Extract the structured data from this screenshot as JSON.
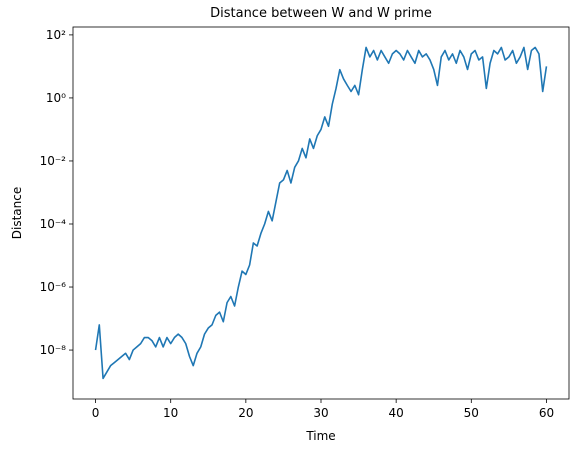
{
  "chart_data": {
    "type": "line",
    "title": "Distance between W and W prime",
    "x_label": "Time",
    "y_label": "Distance",
    "log_y": true,
    "grid": false,
    "xlim": [
      -3,
      63
    ],
    "xticks": [
      0,
      10,
      20,
      30,
      40,
      50,
      60
    ],
    "ylim": [
      2.8e-10,
      178
    ],
    "yticks": [
      {
        "value": 1e-08,
        "label": "10⁻⁸"
      },
      {
        "value": 1e-06,
        "label": "10⁻⁶"
      },
      {
        "value": 0.0001,
        "label": "10⁻⁴"
      },
      {
        "value": 0.01,
        "label": "10⁻²"
      },
      {
        "value": 1,
        "label": "10⁰"
      },
      {
        "value": 100,
        "label": "10²"
      }
    ],
    "series": [
      {
        "color": "#1f77b4",
        "x": [
          0,
          0.5,
          1,
          1.5,
          2,
          2.5,
          3,
          3.5,
          4,
          4.5,
          5,
          5.5,
          6,
          6.5,
          7,
          7.5,
          8,
          8.5,
          9,
          9.5,
          10,
          10.5,
          11,
          11.5,
          12,
          12.5,
          13,
          13.5,
          14,
          14.5,
          15,
          15.5,
          16,
          16.5,
          17,
          17.5,
          18,
          18.5,
          19,
          19.5,
          20,
          20.5,
          21,
          21.5,
          22,
          22.5,
          23,
          23.5,
          24,
          24.5,
          25,
          25.5,
          26,
          26.5,
          27,
          27.5,
          28,
          28.5,
          29,
          29.5,
          30,
          30.5,
          31,
          31.5,
          32,
          32.5,
          33,
          33.5,
          34,
          34.5,
          35,
          35.5,
          36,
          36.5,
          37,
          37.5,
          38,
          38.5,
          39,
          39.5,
          40,
          40.5,
          41,
          41.5,
          42,
          42.5,
          43,
          43.5,
          44,
          44.5,
          45,
          45.5,
          46,
          46.5,
          47,
          47.5,
          48,
          48.5,
          49,
          49.5,
          50,
          50.5,
          51,
          51.5,
          52,
          52.5,
          53,
          53.5,
          54,
          54.5,
          55,
          55.5,
          56,
          56.5,
          57,
          57.5,
          58,
          58.5,
          59,
          59.5,
          60
        ],
        "values": [
          1e-08,
          6.3e-08,
          1.26e-09,
          2e-09,
          3.2e-09,
          4e-09,
          5e-09,
          6.3e-09,
          7.9e-09,
          5e-09,
          1e-08,
          1.26e-08,
          1.6e-08,
          2.5e-08,
          2.5e-08,
          2e-08,
          1.26e-08,
          2.5e-08,
          1.26e-08,
          2.5e-08,
          1.6e-08,
          2.5e-08,
          3.2e-08,
          2.5e-08,
          1.6e-08,
          6.3e-09,
          3.2e-09,
          7.9e-09,
          1.26e-08,
          3.2e-08,
          5e-08,
          6.3e-08,
          1.26e-07,
          1.6e-07,
          7.9e-08,
          3.2e-07,
          5e-07,
          2.5e-07,
          1e-06,
          3.2e-06,
          2.5e-06,
          5e-06,
          2.5e-05,
          2e-05,
          5e-05,
          0.0001,
          0.00025,
          0.000126,
          0.0005,
          0.002,
          0.0025,
          0.005,
          0.002,
          0.0063,
          0.01,
          0.025,
          0.0126,
          0.05,
          0.025,
          0.063,
          0.1,
          0.25,
          0.126,
          0.63,
          2,
          7.9,
          4,
          2.5,
          1.6,
          2.5,
          1.26,
          7.9,
          40,
          20,
          32,
          16,
          32,
          20,
          12.6,
          25,
          32,
          25,
          16,
          32,
          20,
          12.6,
          32,
          20,
          25,
          16,
          8,
          2.5,
          20,
          32,
          16,
          25,
          12.6,
          32,
          20,
          8,
          25,
          32,
          16,
          20,
          2,
          12.6,
          32,
          25,
          40,
          16,
          20,
          32,
          12.6,
          20,
          40,
          8,
          32,
          40,
          25,
          1.6,
          10
        ]
      }
    ]
  }
}
